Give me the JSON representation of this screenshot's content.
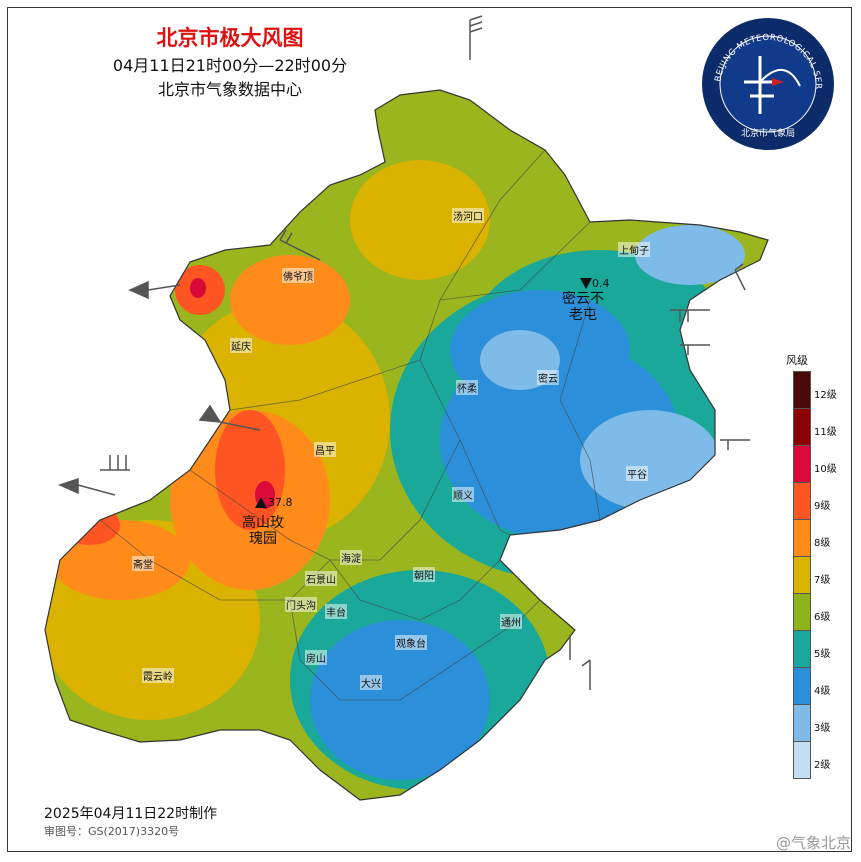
{
  "header": {
    "title": "北京市极大风图",
    "time_range": "04月11日21时00分—22时00分",
    "issuer": "北京市气象数据中心"
  },
  "logo": {
    "ring_text": "BEIJING METEOROLOGICAL SERVICE",
    "name": "北京市气象局",
    "colors": {
      "outer": "#0d2a6a",
      "inner": "#123a8a",
      "accent": "#d12020"
    }
  },
  "legend": {
    "title": "风级",
    "levels": [
      {
        "label": "12级",
        "color": "#4a0a0a"
      },
      {
        "label": "11级",
        "color": "#8b0000"
      },
      {
        "label": "10级",
        "color": "#d90a3a"
      },
      {
        "label": "9级",
        "color": "#ff5522"
      },
      {
        "label": "8级",
        "color": "#ff8c1a"
      },
      {
        "label": "7级",
        "color": "#d9b300"
      },
      {
        "label": "6级",
        "color": "#8fb31a"
      },
      {
        "label": "5级",
        "color": "#1aa89a"
      },
      {
        "label": "4级",
        "color": "#2b8fd9"
      },
      {
        "label": "3级",
        "color": "#7fbbe8"
      },
      {
        "label": "2级",
        "color": "#c2def5"
      }
    ]
  },
  "places": {
    "tanghekou": "汤河口",
    "shangdianzi": "上甸子",
    "badaling": "佛爷顶",
    "yanqing": "延庆",
    "huairou": "怀柔",
    "miyun": "密云",
    "pinggu": "平谷",
    "changping": "昌平",
    "shunyi": "顺义",
    "zhaitang": "斋堂",
    "haidian": "海淀",
    "shijingshan": "石景山",
    "mentougou": "门头沟",
    "chaoyang": "朝阳",
    "fengtai": "丰台",
    "tongzhou": "通州",
    "guanxiangtai": "观象台",
    "fangshan": "房山",
    "xiayunling": "霞云岭",
    "daxing": "大兴"
  },
  "stations": {
    "max_name": "高山玫\n瑰园",
    "max_value": "37.8",
    "min_name": "密云不\n老屯",
    "min_value": "0.4"
  },
  "footer": {
    "made_at": "2025年04月11日22时制作",
    "review_no": "审图号：GS(2017)3320号",
    "watermark": "@气象北京"
  }
}
